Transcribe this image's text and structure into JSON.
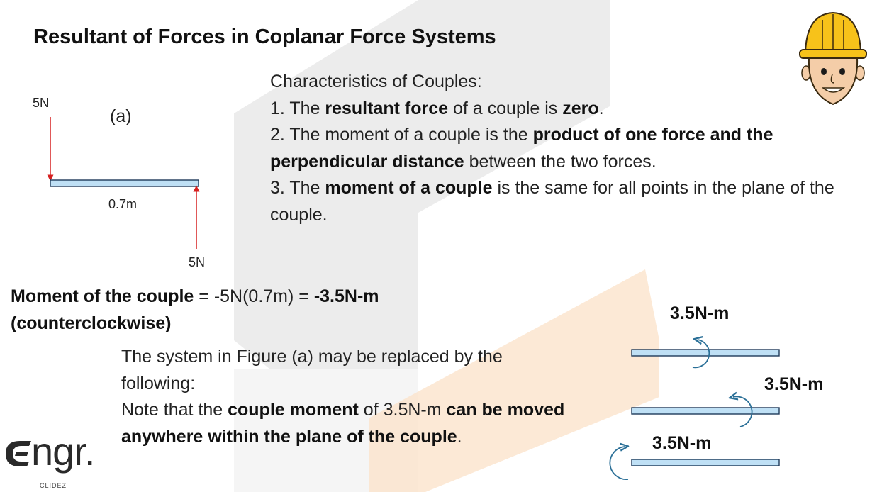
{
  "title": "Resultant of Forces in Coplanar Force Systems",
  "figure_a": {
    "label": "(a)",
    "force_top": "5N",
    "force_bottom": "5N",
    "distance": "0.7m"
  },
  "characteristics": {
    "heading": "Characteristics of Couples:",
    "item1": {
      "pre": "1. The ",
      "b1": "resultant force",
      "mid": " of a couple is ",
      "b2": "zero",
      "post": "."
    },
    "item2": {
      "pre": "2. The moment of a couple is the ",
      "b1": "product of one force and the perpendicular distance",
      "post": " between the two forces."
    },
    "item3": {
      "pre": "3. The ",
      "b1": "moment of a couple",
      "post": " is the same for all points in the plane of the couple."
    }
  },
  "moment": {
    "b1": "Moment of the couple",
    "mid": " = -5N(0.7m) = ",
    "b2": "-3.5N-m",
    "b3": "(counterclockwise)"
  },
  "replacement": {
    "line1": "The system in Figure (a) may be replaced by the following:",
    "line2_pre": "Note that the ",
    "line2_b1": "couple moment",
    "line2_mid": " of 3.5N-m ",
    "line2_b2": "can be moved anywhere within the plane of the couple",
    "line2_post": "."
  },
  "equivalent_moments": {
    "label1": "3.5N-m",
    "label2": "3.5N-m",
    "label3": "3.5N-m"
  },
  "logo": {
    "text": "ngr.",
    "subtext": "CLIDEZ"
  },
  "colors": {
    "beam_fill": "#bfe0f5",
    "beam_stroke": "#1f3a5a",
    "force_arrow": "#d62020",
    "moment_arrow": "#2a6f97",
    "watermark_gray": "#e2e2e2",
    "watermark_orange": "#fbe3cc"
  }
}
